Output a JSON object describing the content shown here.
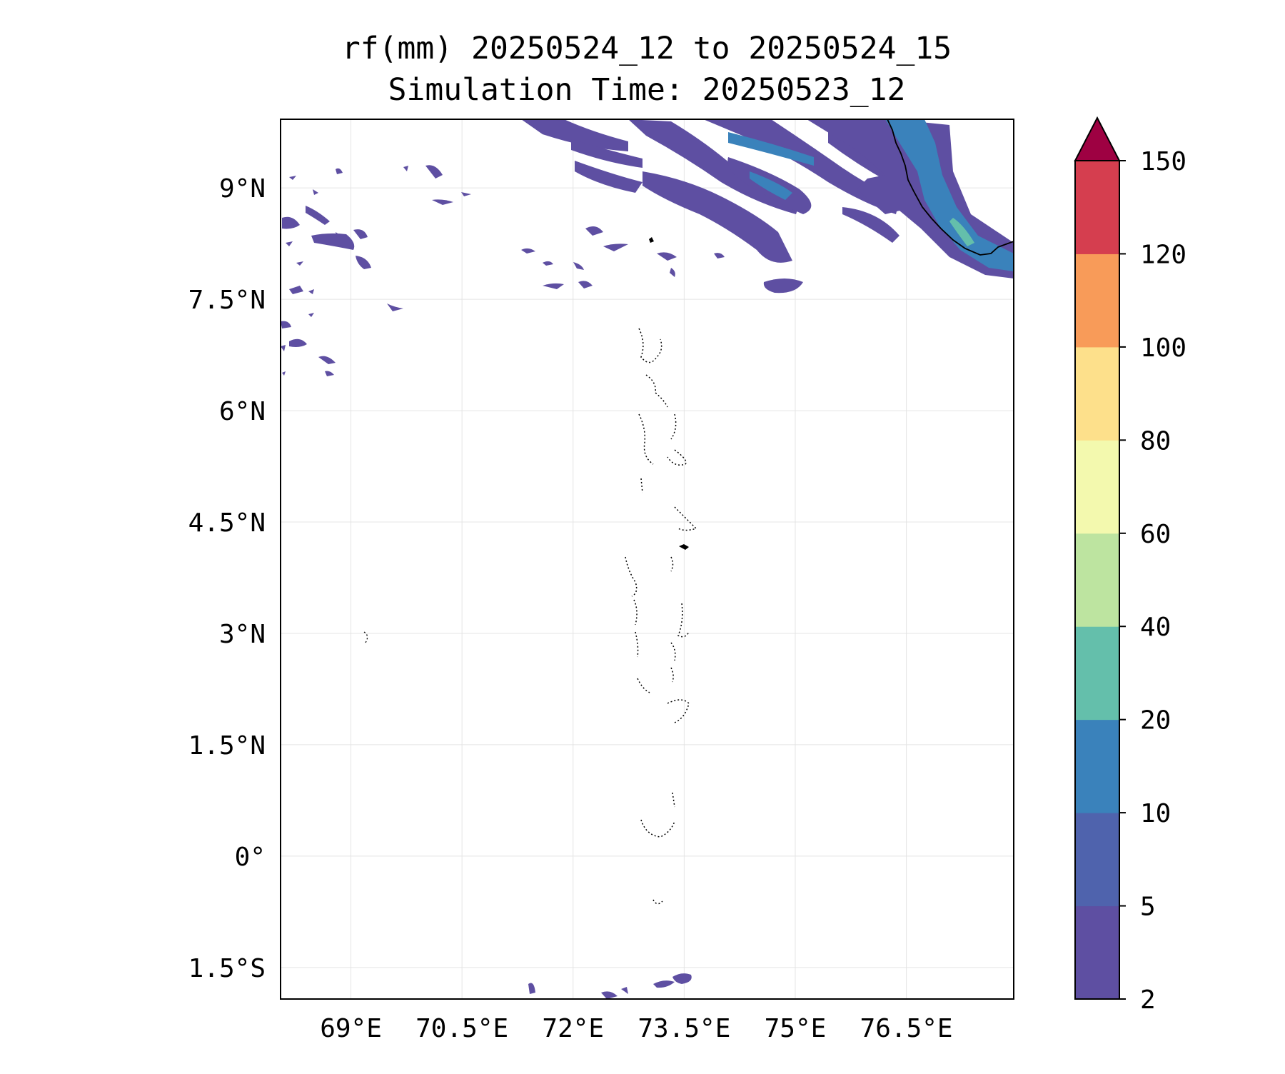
{
  "title": {
    "line1": "rf(mm) 20250524_12 to 20250524_15",
    "line2": "Simulation Time: 20250523_12"
  },
  "map": {
    "lon_ticks": [
      "69°E",
      "70.5°E",
      "72°E",
      "73.5°E",
      "75°E",
      "76.5°E"
    ],
    "lat_ticks": [
      "9°N",
      "7.5°N",
      "6°N",
      "4.5°N",
      "3°N",
      "1.5°N",
      "0°",
      "1.5°S"
    ],
    "lon_values": [
      69,
      70.5,
      72,
      73.5,
      75,
      76.5
    ],
    "lat_values": [
      9,
      7.5,
      6,
      4.5,
      3,
      1.5,
      0,
      -1.5
    ],
    "lon_range": [
      68.05,
      77.95
    ],
    "lat_range": [
      -1.925,
      9.925
    ]
  },
  "colorbar": {
    "levels": [
      "2",
      "5",
      "10",
      "20",
      "40",
      "60",
      "80",
      "100",
      "120",
      "150"
    ],
    "colors": [
      "#5e4fa2",
      "#4f63ad",
      "#3a82bb",
      "#64bfab",
      "#bde4a0",
      "#f3f9ae",
      "#fde08b",
      "#f89b59",
      "#d53e4f",
      "#9e0142"
    ],
    "extend": "max"
  }
}
